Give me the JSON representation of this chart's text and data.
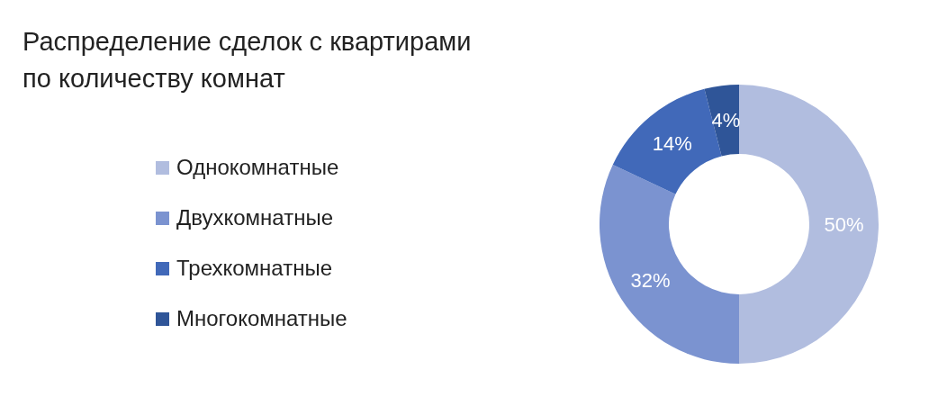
{
  "chart_data": {
    "type": "donut",
    "title": "Распределение сделок с квартирами\nпо количеству комнат",
    "categories": [
      "Однокомнатные",
      "Двухкомнатные",
      "Трехкомнатные",
      "Многокомнатные"
    ],
    "values": [
      50,
      32,
      14,
      4
    ],
    "value_labels": [
      "50%",
      "32%",
      "14%",
      "4%"
    ],
    "colors": [
      "#b1bddf",
      "#7b93d0",
      "#4169b9",
      "#2f5598"
    ],
    "legend": "left"
  }
}
